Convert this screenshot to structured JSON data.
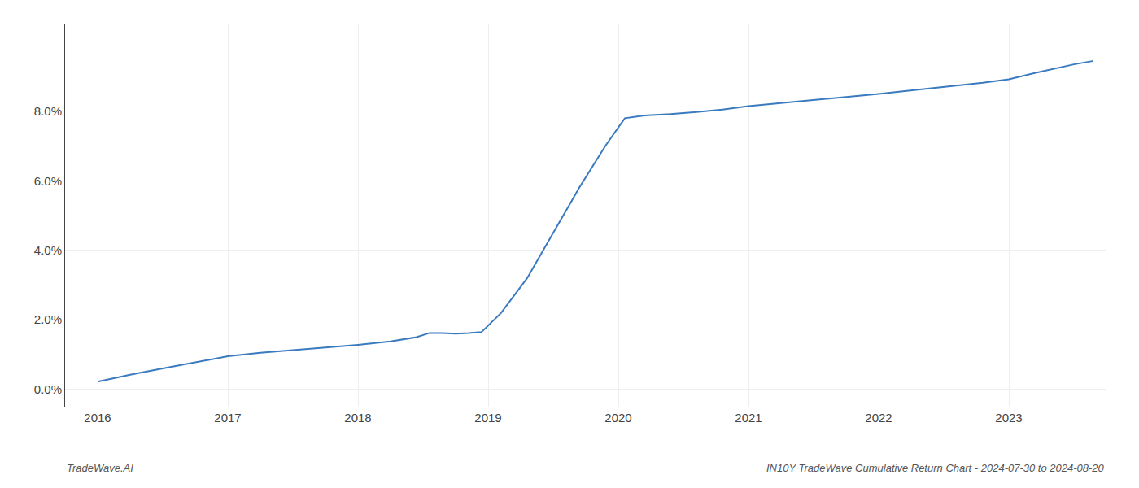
{
  "chart_data": {
    "type": "line",
    "x": [
      2016.0,
      2016.25,
      2016.5,
      2016.75,
      2017.0,
      2017.25,
      2017.5,
      2017.75,
      2018.0,
      2018.25,
      2018.45,
      2018.55,
      2018.65,
      2018.75,
      2018.85,
      2018.95,
      2019.1,
      2019.3,
      2019.5,
      2019.7,
      2019.9,
      2020.05,
      2020.2,
      2020.4,
      2020.6,
      2020.8,
      2021.0,
      2021.2,
      2021.4,
      2021.6,
      2021.8,
      2022.0,
      2022.2,
      2022.5,
      2022.8,
      2023.0,
      2023.2,
      2023.5,
      2023.65
    ],
    "values": [
      0.22,
      0.42,
      0.6,
      0.78,
      0.95,
      1.05,
      1.12,
      1.2,
      1.28,
      1.38,
      1.5,
      1.62,
      1.62,
      1.6,
      1.62,
      1.65,
      2.2,
      3.2,
      4.5,
      5.8,
      7.0,
      7.8,
      7.88,
      7.92,
      7.98,
      8.05,
      8.15,
      8.22,
      8.28,
      8.35,
      8.42,
      8.5,
      8.58,
      8.7,
      8.82,
      8.92,
      9.1,
      9.35,
      9.45
    ],
    "color": "#3a7abf",
    "xlim": [
      2015.75,
      2023.75
    ],
    "ylim": [
      -0.5,
      10.5
    ],
    "xticks": [
      2016,
      2017,
      2018,
      2019,
      2020,
      2021,
      2022,
      2023
    ],
    "yticks": [
      {
        "value": 0.0,
        "label": "0.0%"
      },
      {
        "value": 2.0,
        "label": "2.0%"
      },
      {
        "value": 4.0,
        "label": "4.0%"
      },
      {
        "value": 6.0,
        "label": "6.0%"
      },
      {
        "value": 8.0,
        "label": "8.0%"
      }
    ],
    "grid": true,
    "annotations": [
      "TradeWave.AI",
      "IN10Y TradeWave Cumulative Return Chart - 2024-07-30 to 2024-08-20"
    ]
  }
}
